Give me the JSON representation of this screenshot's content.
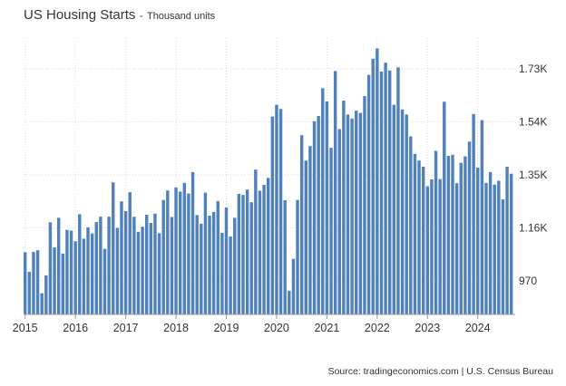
{
  "chart_data": {
    "type": "bar",
    "title": "US Housing Starts",
    "subtitle": "Thousand units",
    "source": "Source: tradingeconomics.com | U.S. Census Bureau",
    "color": "#4f81bd",
    "ylim": [
      850,
      1840
    ],
    "yticks": [
      {
        "value": 970,
        "label": "970"
      },
      {
        "value": 1160,
        "label": "1.16K"
      },
      {
        "value": 1350,
        "label": "1.35K"
      },
      {
        "value": 1540,
        "label": "1.54K"
      },
      {
        "value": 1730,
        "label": "1.73K"
      }
    ],
    "xticks": [
      "2015",
      "2016",
      "2017",
      "2018",
      "2019",
      "2020",
      "2021",
      "2022",
      "2023",
      "2024"
    ],
    "x": [
      "2015-01",
      "2015-02",
      "2015-03",
      "2015-04",
      "2015-05",
      "2015-06",
      "2015-07",
      "2015-08",
      "2015-09",
      "2015-10",
      "2015-11",
      "2015-12",
      "2016-01",
      "2016-02",
      "2016-03",
      "2016-04",
      "2016-05",
      "2016-06",
      "2016-07",
      "2016-08",
      "2016-09",
      "2016-10",
      "2016-11",
      "2016-12",
      "2017-01",
      "2017-02",
      "2017-03",
      "2017-04",
      "2017-05",
      "2017-06",
      "2017-07",
      "2017-08",
      "2017-09",
      "2017-10",
      "2017-11",
      "2017-12",
      "2018-01",
      "2018-02",
      "2018-03",
      "2018-04",
      "2018-05",
      "2018-06",
      "2018-07",
      "2018-08",
      "2018-09",
      "2018-10",
      "2018-11",
      "2018-12",
      "2019-01",
      "2019-02",
      "2019-03",
      "2019-04",
      "2019-05",
      "2019-06",
      "2019-07",
      "2019-08",
      "2019-09",
      "2019-10",
      "2019-11",
      "2019-12",
      "2020-01",
      "2020-02",
      "2020-03",
      "2020-04",
      "2020-05",
      "2020-06",
      "2020-07",
      "2020-08",
      "2020-09",
      "2020-10",
      "2020-11",
      "2020-12",
      "2021-01",
      "2021-02",
      "2021-03",
      "2021-04",
      "2021-05",
      "2021-06",
      "2021-07",
      "2021-08",
      "2021-09",
      "2021-10",
      "2021-11",
      "2021-12",
      "2022-01",
      "2022-02",
      "2022-03",
      "2022-04",
      "2022-05",
      "2022-06",
      "2022-07",
      "2022-08",
      "2022-09",
      "2022-10",
      "2022-11",
      "2022-12",
      "2023-01",
      "2023-02",
      "2023-03",
      "2023-04",
      "2023-05",
      "2023-06",
      "2023-07",
      "2023-08",
      "2023-09",
      "2023-10",
      "2023-11",
      "2023-12",
      "2024-01",
      "2024-02",
      "2024-03",
      "2024-04",
      "2024-05",
      "2024-06",
      "2024-07",
      "2024-08",
      "2024-09"
    ],
    "values": [
      1073,
      1003,
      1074,
      1080,
      926,
      990,
      1180,
      1090,
      1196,
      1068,
      1153,
      1150,
      1112,
      1209,
      1121,
      1162,
      1140,
      1181,
      1200,
      1085,
      1200,
      1323,
      1160,
      1255,
      1220,
      1288,
      1200,
      1146,
      1164,
      1207,
      1178,
      1211,
      1141,
      1260,
      1294,
      1199,
      1305,
      1290,
      1321,
      1283,
      1360,
      1206,
      1175,
      1286,
      1204,
      1217,
      1256,
      1142,
      1233,
      1129,
      1196,
      1282,
      1278,
      1297,
      1252,
      1369,
      1293,
      1314,
      1339,
      1559,
      1601,
      1586,
      1259,
      935,
      1049,
      1260,
      1492,
      1401,
      1453,
      1542,
      1561,
      1660,
      1613,
      1447,
      1722,
      1514,
      1616,
      1566,
      1552,
      1580,
      1572,
      1632,
      1708,
      1766,
      1803,
      1720,
      1752,
      1724,
      1601,
      1735,
      1584,
      1566,
      1488,
      1425,
      1401,
      1379,
      1309,
      1334,
      1436,
      1335,
      1612,
      1418,
      1422,
      1320,
      1393,
      1416,
      1469,
      1568,
      1376,
      1546,
      1321,
      1360,
      1315,
      1329,
      1262,
      1379,
      1354
    ]
  }
}
